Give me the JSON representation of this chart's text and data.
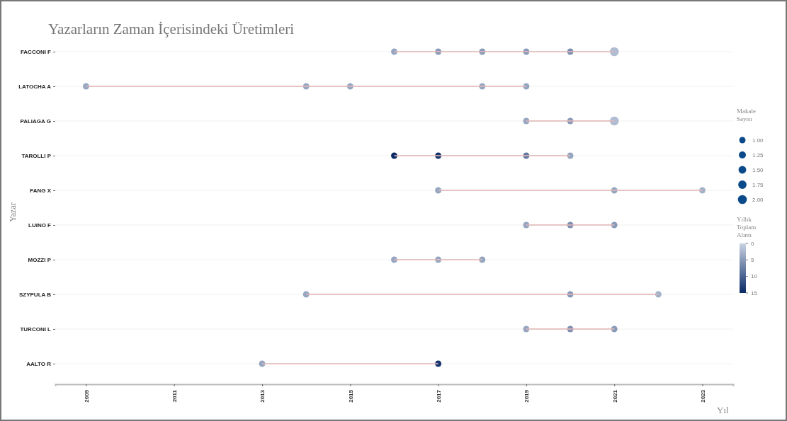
{
  "chart_data": {
    "type": "bubble",
    "title": "Yazarların Zaman İçerisindeki Üretimleri",
    "xlabel": "Yıl",
    "ylabel": "Yazar",
    "legend_title": "Makale Sayısı",
    "clabel": "Yıllık Toplam Alıntı",
    "orientation": "horizontal",
    "grid": "y",
    "categories": [
      "FACCONI F",
      "LATOCHA A",
      "PALIAGA G",
      "TAROLLI P",
      "FANG X",
      "LUINO F",
      "MOZZI P",
      "SZYPULA B",
      "TURCONI L",
      "AALTO R"
    ],
    "xlim": [
      2008.3,
      2023.7
    ],
    "xticks": [
      2009,
      2011,
      2013,
      2015,
      2017,
      2019,
      2021,
      2023
    ],
    "size_legend": [
      {
        "value": 1,
        "label": "1.00"
      },
      {
        "value": 1.25,
        "label": "1.25"
      },
      {
        "value": 1.5,
        "label": "1.50"
      },
      {
        "value": 1.75,
        "label": "1.75"
      },
      {
        "value": 2,
        "label": "2.00"
      }
    ],
    "clim": [
      0,
      15
    ],
    "cticks": [
      {
        "value": 0,
        "label": "0"
      },
      {
        "value": 5,
        "label": "5"
      },
      {
        "value": 10,
        "label": "10"
      },
      {
        "value": 15,
        "label": "15"
      }
    ],
    "series": [
      {
        "type": "bar",
        "color": "#e2b8b8",
        "base": [
          2016,
          2009,
          2019,
          2016,
          2017,
          2019,
          2016,
          2014,
          2019,
          2013
        ],
        "values": [
          5,
          10,
          2,
          4,
          6,
          2,
          2,
          8,
          2,
          4
        ]
      },
      {
        "values": [
          2016,
          2009,
          2019,
          2016,
          2017,
          2019,
          2016,
          2014,
          2019,
          2013
        ],
        "sizes": [
          1,
          1,
          1,
          1,
          1,
          1,
          1,
          1,
          1,
          1
        ],
        "colors": [
          "#96a6c1",
          "#96a6c1",
          "#96a6c1",
          "#0a2a66",
          "#96a6c1",
          "#96a6c1",
          "#96a6c1",
          "#96a6c1",
          "#96a6c1",
          "#96a6c1"
        ]
      },
      {
        "values": [
          2017,
          2014,
          2020,
          2017,
          2021,
          2020,
          2017,
          2020,
          2020,
          2017
        ],
        "sizes": [
          1,
          1,
          1,
          1,
          1,
          1,
          1,
          1,
          1,
          1
        ],
        "colors": [
          "#899bb9",
          "#96a6c1",
          "#899bb9",
          "#17356e",
          "#96a6c1",
          "#7d8fb0",
          "#96a6c1",
          "#899bb9",
          "#7d8fb0",
          "#17356e"
        ]
      },
      {
        "values": [
          2018,
          2015,
          2021,
          2019,
          2023,
          2021,
          2018,
          2022,
          2021,
          null
        ],
        "sizes": [
          1,
          1,
          2,
          1,
          1,
          1,
          1,
          1,
          1,
          null
        ],
        "colors": [
          "#899bb9",
          "#96a6c1",
          "#b0bcd1",
          "#6379a0",
          "#a3b1c9",
          "#899bb9",
          "#96a6c1",
          "#a3b1c9",
          "#899bb9",
          null
        ]
      },
      {
        "values": [
          2019,
          2018,
          null,
          2020,
          null,
          null,
          null,
          null,
          null,
          null
        ],
        "sizes": [
          1,
          1,
          null,
          1,
          null,
          null,
          null,
          null,
          null,
          null
        ],
        "colors": [
          "#899bb9",
          "#96a6c1",
          null,
          "#96a6c1",
          null,
          null,
          null,
          null,
          null,
          null
        ]
      },
      {
        "values": [
          2020,
          2019,
          null,
          null,
          null,
          null,
          null,
          null,
          null,
          null
        ],
        "sizes": [
          1,
          1,
          null,
          null,
          null,
          null,
          null,
          null,
          null,
          null
        ],
        "colors": [
          "#7d8fb0",
          "#96a6c1",
          null,
          null,
          null,
          null,
          null,
          null,
          null,
          null
        ]
      },
      {
        "values": [
          2021,
          null,
          null,
          null,
          null,
          null,
          null,
          null,
          null,
          null
        ],
        "sizes": [
          2,
          null,
          null,
          null,
          null,
          null,
          null,
          null,
          null,
          null
        ],
        "colors": [
          "#b0bcd1",
          null,
          null,
          null,
          null,
          null,
          null,
          null,
          null,
          null
        ]
      }
    ]
  }
}
